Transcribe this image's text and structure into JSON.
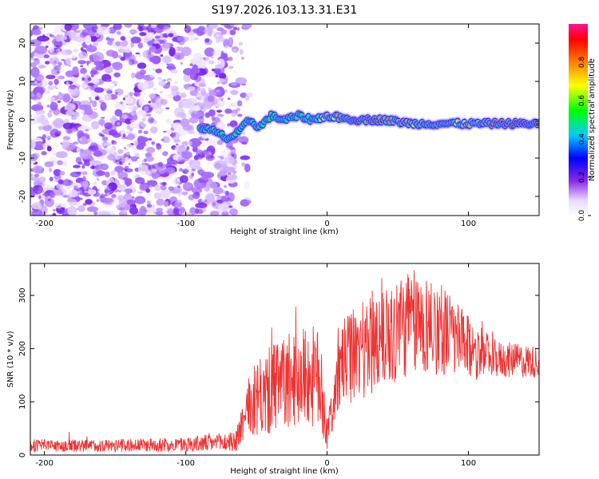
{
  "title": "S197.2026.103.13.31.E31",
  "chart_data": [
    {
      "type": "heatmap",
      "xlabel": "Height of straight line (km)",
      "ylabel": "Frequency (Hz)",
      "xlim": [
        -210,
        150
      ],
      "ylim": [
        -25,
        25
      ],
      "xticks": [
        -200,
        -100,
        0,
        100
      ],
      "yticks": [
        -20,
        -10,
        0,
        10,
        20
      ],
      "colorbar": {
        "label": "Normalized spectral amplitude",
        "range": [
          0,
          1
        ],
        "ticks": [
          "0.0",
          "0.2",
          "0.4",
          "0.6",
          "0.8"
        ],
        "tick_values": [
          0.0,
          0.2,
          0.4,
          0.6,
          0.8
        ]
      },
      "noise_region_x": [
        -210,
        -65
      ],
      "signal_track": {
        "x": [
          -90,
          -80,
          -70,
          -62,
          -55,
          -48,
          -40,
          -30,
          -20,
          -10,
          0,
          20,
          40,
          60,
          80,
          100,
          120,
          150
        ],
        "y": [
          -2,
          -3,
          -5,
          -3,
          0,
          -2,
          1,
          0,
          1,
          0,
          1,
          0,
          0,
          -1,
          -1,
          -1,
          -1,
          -1
        ],
        "amplitude": [
          0.4,
          0.3,
          0.35,
          0.3,
          0.4,
          0.35,
          0.45,
          0.55,
          0.6,
          0.55,
          0.7,
          0.9,
          0.8,
          0.75,
          0.8,
          0.7,
          0.85,
          0.95
        ]
      }
    },
    {
      "type": "line",
      "xlabel": "Height of straight line (km)",
      "ylabel": "SNR (10 * v/v)",
      "xlim": [
        -210,
        150
      ],
      "ylim": [
        0,
        360
      ],
      "xticks": [
        -200,
        -100,
        0,
        100
      ],
      "yticks": [
        0,
        100,
        200,
        300
      ],
      "series": [
        {
          "name": "SNR",
          "color": "#ee3333",
          "envelope_x": [
            -210,
            -150,
            -100,
            -65,
            -55,
            -45,
            -35,
            -25,
            -15,
            -5,
            0,
            10,
            20,
            40,
            60,
            80,
            100,
            120,
            150
          ],
          "envelope_mean": [
            18,
            18,
            20,
            25,
            90,
            110,
            130,
            140,
            150,
            140,
            40,
            170,
            190,
            230,
            250,
            240,
            200,
            180,
            175
          ],
          "envelope_amp": [
            12,
            12,
            14,
            20,
            60,
            80,
            90,
            90,
            95,
            100,
            30,
            80,
            90,
            110,
            100,
            90,
            60,
            35,
            30
          ]
        }
      ]
    }
  ]
}
